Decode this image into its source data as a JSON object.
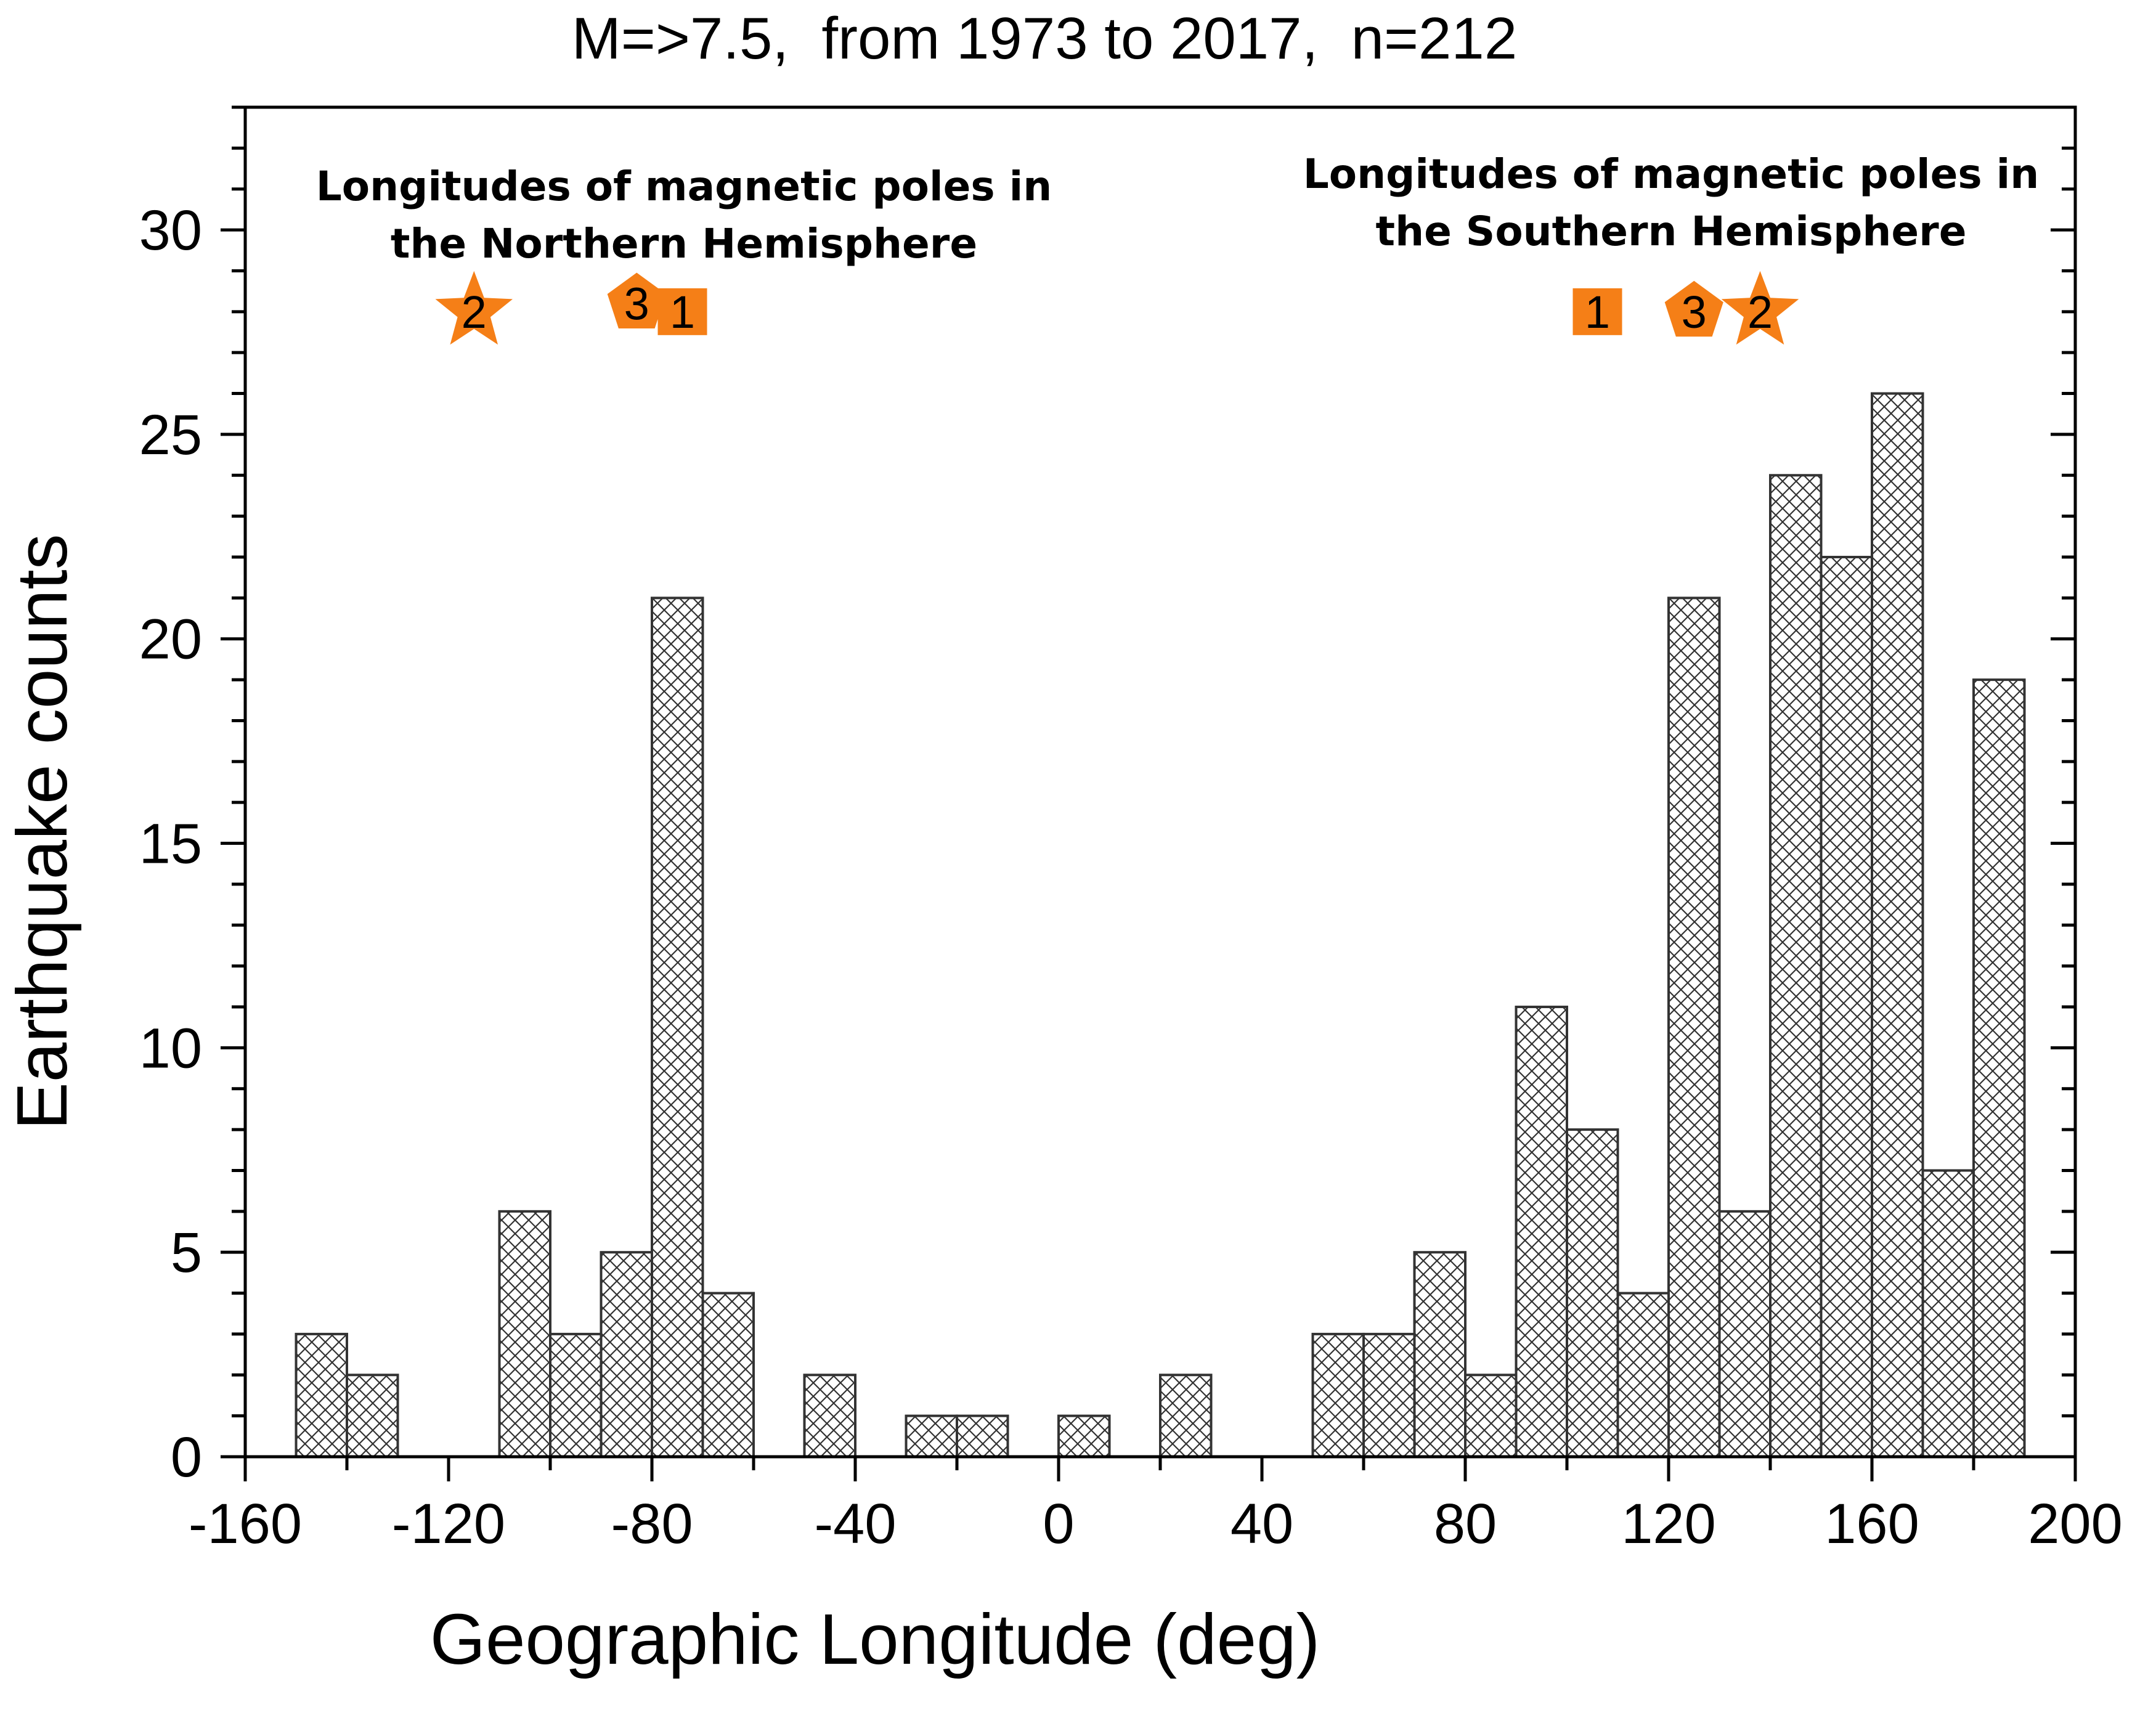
{
  "chart_data": {
    "type": "bar",
    "title": "M=>7.5,  from 1973 to 2017,  n=212",
    "xlabel": "Geographic Longitude (deg)",
    "ylabel": "Earthquake counts",
    "xlim": [
      -160,
      200
    ],
    "ylim": [
      0,
      33
    ],
    "x_ticks": [
      -160,
      -120,
      -80,
      -40,
      0,
      40,
      80,
      120,
      160,
      200
    ],
    "x_tick_labels": [
      "-160",
      "-120",
      "-80",
      "-40",
      "0",
      "40",
      "80",
      "120",
      "160",
      "200"
    ],
    "y_ticks": [
      0,
      5,
      10,
      15,
      20,
      25,
      30
    ],
    "y_tick_labels": [
      "0",
      "5",
      "10",
      "15",
      "20",
      "25",
      "30"
    ],
    "grid": false,
    "bin_width": 10,
    "bin_centers": [
      -145,
      -135,
      -125,
      -115,
      -105,
      -95,
      -85,
      -75,
      -65,
      -55,
      -45,
      -35,
      -25,
      -15,
      -5,
      5,
      15,
      25,
      35,
      45,
      55,
      65,
      75,
      85,
      95,
      105,
      115,
      125,
      135,
      145,
      155,
      165,
      175,
      185
    ],
    "values": [
      3,
      2,
      0,
      0,
      6,
      3,
      5,
      21,
      4,
      0,
      2,
      0,
      1,
      1,
      0,
      1,
      0,
      2,
      0,
      0,
      3,
      3,
      5,
      2,
      11,
      8,
      4,
      21,
      6,
      24,
      22,
      26,
      7,
      19
    ],
    "fill_pattern": "crosshatch",
    "annotations": [
      {
        "id": "northern",
        "lines": [
          "Longitudes of magnetic poles in",
          "the Northern Hemisphere"
        ],
        "markers": [
          {
            "shape": "star",
            "label": "2",
            "x": -115,
            "y": 28
          },
          {
            "shape": "pentagon",
            "label": "3",
            "x": -83,
            "y": 28.2
          },
          {
            "shape": "square",
            "label": "1",
            "x": -74,
            "y": 28
          }
        ]
      },
      {
        "id": "southern",
        "lines": [
          "Longitudes of magnetic poles in",
          "the Southern Hemisphere"
        ],
        "markers": [
          {
            "shape": "square",
            "label": "1",
            "x": 106,
            "y": 28
          },
          {
            "shape": "pentagon",
            "label": "3",
            "x": 125,
            "y": 28
          },
          {
            "shape": "star",
            "label": "2",
            "x": 138,
            "y": 28
          }
        ]
      }
    ],
    "marker_color": "#F57F17",
    "bar_edge_color": "#333333",
    "axis_color": "#000000"
  }
}
